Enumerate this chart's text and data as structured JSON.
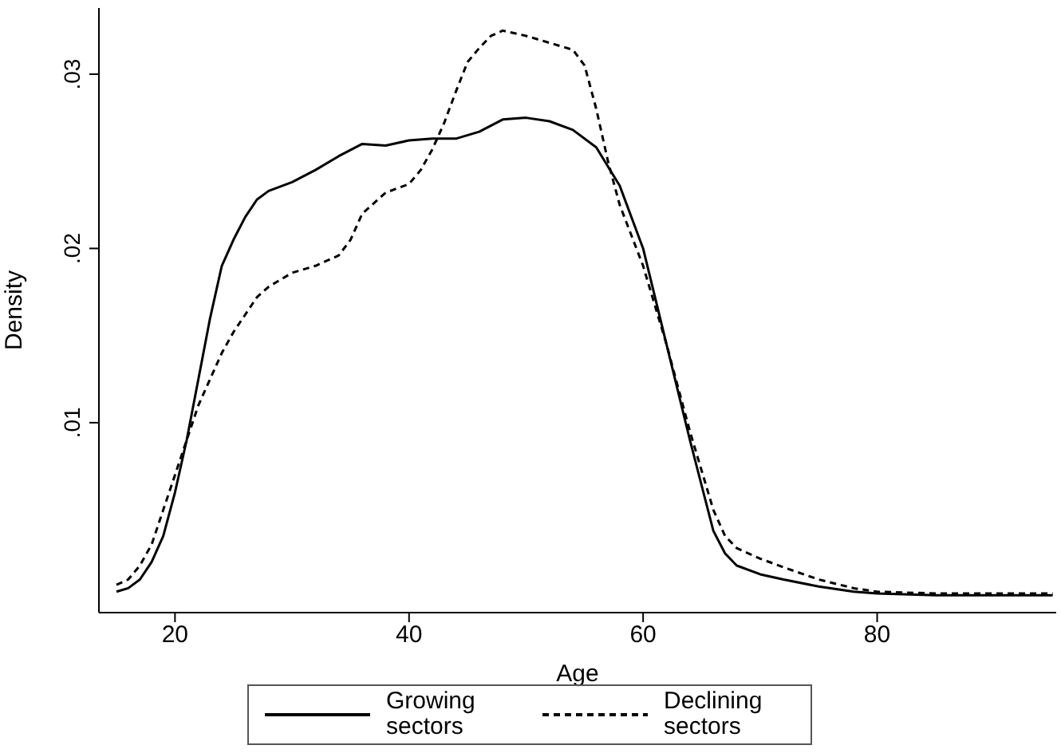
{
  "chart_data": {
    "type": "line",
    "xlabel": "Age",
    "ylabel": "Density",
    "xlim": [
      13.5,
      95.3
    ],
    "ylim": [
      -0.0009,
      0.0338
    ],
    "xticks": [
      20,
      40,
      60,
      80
    ],
    "yticks": [
      {
        "value": 0.01,
        "label": ".01"
      },
      {
        "value": 0.02,
        "label": ".02"
      },
      {
        "value": 0.03,
        "label": ".03"
      }
    ],
    "grid": false,
    "legend": "bottom",
    "marker": "none",
    "series": [
      {
        "name": "Growing sectors",
        "color": "#000000",
        "line_style": "solid",
        "x": [
          15,
          16,
          17,
          18,
          19,
          20,
          21,
          22,
          23,
          24,
          25,
          26,
          27,
          28,
          30,
          32,
          34,
          36,
          38,
          40,
          42,
          44,
          46,
          48,
          50,
          52,
          54,
          56,
          58,
          60,
          62,
          64,
          66,
          67,
          68,
          70,
          72,
          75,
          78,
          80,
          85,
          90,
          95
        ],
        "values": [
          0.0003,
          0.0005,
          0.001,
          0.002,
          0.0035,
          0.006,
          0.009,
          0.0125,
          0.016,
          0.019,
          0.0205,
          0.0218,
          0.0228,
          0.0233,
          0.0238,
          0.0245,
          0.0253,
          0.026,
          0.0259,
          0.0262,
          0.0263,
          0.0263,
          0.0267,
          0.0274,
          0.0275,
          0.0273,
          0.0268,
          0.0258,
          0.0236,
          0.02,
          0.0145,
          0.009,
          0.0038,
          0.0025,
          0.0018,
          0.0013,
          0.001,
          0.0006,
          0.0003,
          0.0002,
          0.0001,
          0.0001,
          0.0001
        ]
      },
      {
        "name": "Declining sectors",
        "color": "#000000",
        "line_style": "dashed",
        "x": [
          15,
          16,
          17,
          18,
          19,
          20,
          21,
          22,
          23,
          24,
          25,
          26,
          27,
          28,
          30,
          32,
          34,
          35,
          36,
          38,
          40,
          41,
          42,
          43,
          44,
          45,
          46,
          47,
          48,
          50,
          52,
          54,
          55,
          56,
          57,
          58,
          60,
          62,
          64,
          66,
          67,
          68,
          70,
          72,
          75,
          78,
          80,
          85,
          90,
          95
        ],
        "values": [
          0.0007,
          0.001,
          0.0018,
          0.003,
          0.005,
          0.007,
          0.009,
          0.011,
          0.0125,
          0.014,
          0.0152,
          0.0162,
          0.0172,
          0.0178,
          0.0186,
          0.019,
          0.0196,
          0.0205,
          0.022,
          0.0232,
          0.0237,
          0.0245,
          0.0257,
          0.0272,
          0.029,
          0.0307,
          0.0315,
          0.0322,
          0.0325,
          0.0322,
          0.0318,
          0.0314,
          0.0305,
          0.028,
          0.025,
          0.0225,
          0.019,
          0.0145,
          0.0095,
          0.005,
          0.0035,
          0.0028,
          0.0022,
          0.0017,
          0.001,
          0.0005,
          0.0003,
          0.0002,
          0.0002,
          0.0002
        ]
      }
    ]
  }
}
